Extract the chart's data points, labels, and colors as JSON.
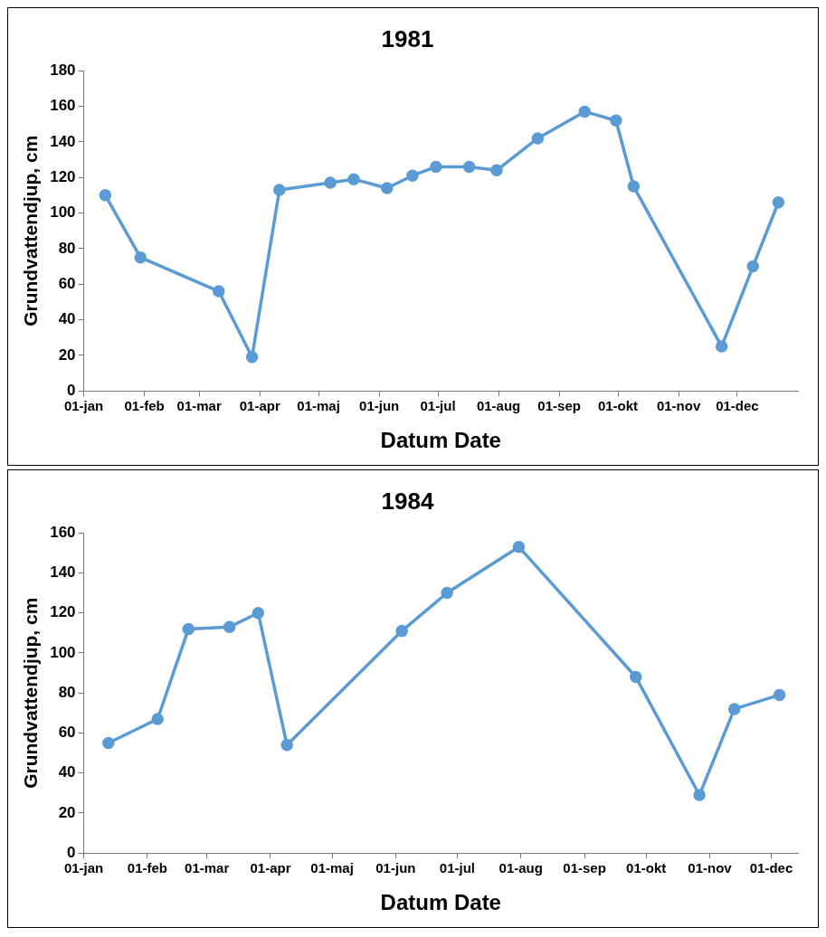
{
  "chart_data": [
    {
      "type": "line",
      "title": "1981",
      "xlabel": "Datum Date",
      "ylabel": "Grundvattendjup, cm",
      "grid": false,
      "marker": "circle",
      "line_style": "solid",
      "x": [
        "1981-01-12",
        "1981-01-30",
        "1981-03-11",
        "1981-03-28",
        "1981-04-11",
        "1981-05-07",
        "1981-05-19",
        "1981-06-05",
        "1981-06-18",
        "1981-06-30",
        "1981-07-17",
        "1981-07-31",
        "1981-08-21",
        "1981-09-14",
        "1981-09-30",
        "1981-10-09",
        "1981-11-23",
        "1981-12-09",
        "1981-12-22"
      ],
      "series": [
        {
          "color": "#5b9bd5",
          "values": [
            110,
            75,
            56,
            19,
            113,
            117,
            119,
            114,
            121,
            126,
            126,
            124,
            142,
            157,
            152,
            115,
            25,
            70,
            106
          ]
        }
      ],
      "xlim": [
        "1981-01-01",
        "1982-01-01"
      ],
      "xticks": [
        {
          "value": "1981-01-01",
          "label": "01-jan"
        },
        {
          "value": "1981-02-01",
          "label": "01-feb"
        },
        {
          "value": "1981-03-01",
          "label": "01-mar"
        },
        {
          "value": "1981-04-01",
          "label": "01-apr"
        },
        {
          "value": "1981-05-01",
          "label": "01-maj"
        },
        {
          "value": "1981-06-01",
          "label": "01-jun"
        },
        {
          "value": "1981-07-01",
          "label": "01-jul"
        },
        {
          "value": "1981-08-01",
          "label": "01-aug"
        },
        {
          "value": "1981-09-01",
          "label": "01-sep"
        },
        {
          "value": "1981-10-01",
          "label": "01-okt"
        },
        {
          "value": "1981-11-01",
          "label": "01-nov"
        },
        {
          "value": "1981-12-01",
          "label": "01-dec"
        }
      ],
      "ylim": [
        0,
        180
      ],
      "yticks": [
        0,
        20,
        40,
        60,
        80,
        100,
        120,
        140,
        160,
        180
      ]
    },
    {
      "type": "line",
      "title": "1984",
      "xlabel": "Datum Date",
      "ylabel": "Grundvattendjup, cm",
      "grid": false,
      "marker": "circle",
      "line_style": "solid",
      "x": [
        "1984-01-13",
        "1984-02-06",
        "1984-02-21",
        "1984-03-12",
        "1984-03-26",
        "1984-04-09",
        "1984-06-04",
        "1984-06-26",
        "1984-07-31",
        "1984-09-26",
        "1984-10-27",
        "1984-11-13",
        "1984-12-05"
      ],
      "series": [
        {
          "color": "#5b9bd5",
          "values": [
            55,
            67,
            112,
            113,
            120,
            54,
            111,
            130,
            153,
            88,
            29,
            72,
            79
          ]
        }
      ],
      "xlim": [
        "1984-01-01",
        "1984-12-14"
      ],
      "xticks": [
        {
          "value": "1984-01-01",
          "label": "01-jan"
        },
        {
          "value": "1984-02-01",
          "label": "01-feb"
        },
        {
          "value": "1984-03-01",
          "label": "01-mar"
        },
        {
          "value": "1984-04-01",
          "label": "01-apr"
        },
        {
          "value": "1984-05-01",
          "label": "01-maj"
        },
        {
          "value": "1984-06-01",
          "label": "01-jun"
        },
        {
          "value": "1984-07-01",
          "label": "01-jul"
        },
        {
          "value": "1984-08-01",
          "label": "01-aug"
        },
        {
          "value": "1984-09-01",
          "label": "01-sep"
        },
        {
          "value": "1984-10-01",
          "label": "01-okt"
        },
        {
          "value": "1984-11-01",
          "label": "01-nov"
        },
        {
          "value": "1984-12-01",
          "label": "01-dec"
        }
      ],
      "ylim": [
        0,
        160
      ],
      "yticks": [
        0,
        20,
        40,
        60,
        80,
        100,
        120,
        140,
        160
      ]
    }
  ]
}
